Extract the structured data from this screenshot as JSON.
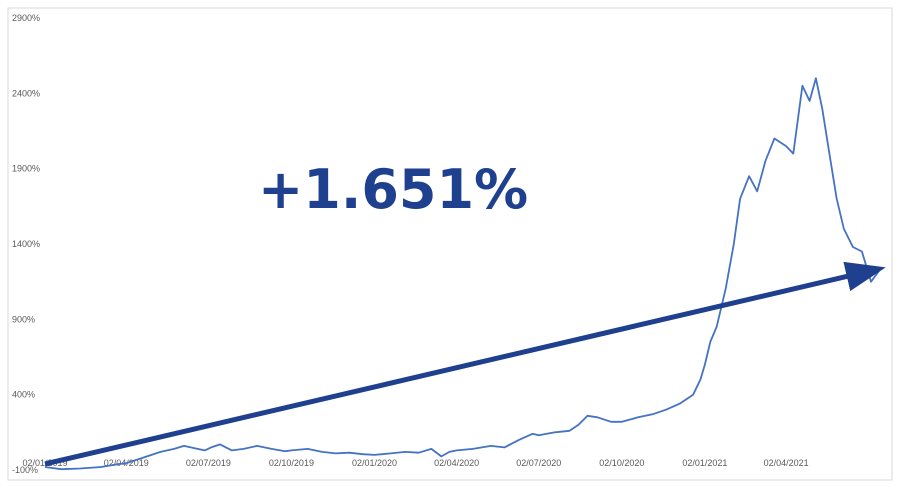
{
  "chart_data": {
    "type": "line",
    "title": "",
    "xlabel": "",
    "ylabel": "",
    "ylim": [
      -100,
      2900
    ],
    "y_ticks": [
      -100,
      400,
      900,
      1400,
      1900,
      2400,
      2900
    ],
    "y_tick_labels": [
      "-100%",
      "400%",
      "900%",
      "1400%",
      "1900%",
      "2400%",
      "2900%"
    ],
    "x_ticks": [
      "2019-01-02",
      "2019-04-02",
      "2019-07-02",
      "2019-10-02",
      "2020-01-02",
      "2020-04-02",
      "2020-07-02",
      "2020-10-02",
      "2021-01-02",
      "2021-04-02"
    ],
    "x_tick_labels": [
      "02/01/2019",
      "02/04/2019",
      "02/07/2019",
      "02/10/2019",
      "02/01/2020",
      "02/04/2020",
      "02/07/2020",
      "02/10/2020",
      "02/01/2021",
      "02/04/2021"
    ],
    "xlim": [
      "2019-01-02",
      "2021-07-15"
    ],
    "grid": false,
    "line_color": "#4472c4",
    "series": [
      {
        "x": [
          "2019-01-02",
          "2019-01-20",
          "2019-02-10",
          "2019-03-05",
          "2019-03-25",
          "2019-04-02",
          "2019-04-20",
          "2019-05-10",
          "2019-05-25",
          "2019-06-05",
          "2019-06-20",
          "2019-06-28",
          "2019-07-05",
          "2019-07-15",
          "2019-07-28",
          "2019-08-10",
          "2019-08-25",
          "2019-09-10",
          "2019-09-25",
          "2019-10-02",
          "2019-10-20",
          "2019-11-05",
          "2019-11-20",
          "2019-12-05",
          "2019-12-20",
          "2020-01-02",
          "2020-01-20",
          "2020-02-05",
          "2020-02-20",
          "2020-03-05",
          "2020-03-16",
          "2020-03-25",
          "2020-04-02",
          "2020-04-20",
          "2020-05-10",
          "2020-05-25",
          "2020-06-10",
          "2020-06-25",
          "2020-07-02",
          "2020-07-20",
          "2020-08-05",
          "2020-08-15",
          "2020-08-25",
          "2020-09-05",
          "2020-09-20",
          "2020-10-02",
          "2020-10-20",
          "2020-11-05",
          "2020-11-20",
          "2020-12-05",
          "2020-12-20",
          "2020-12-28",
          "2021-01-02",
          "2021-01-08",
          "2021-01-15",
          "2021-01-25",
          "2021-02-03",
          "2021-02-10",
          "2021-02-20",
          "2021-03-01",
          "2021-03-10",
          "2021-03-20",
          "2021-04-02",
          "2021-04-10",
          "2021-04-20",
          "2021-04-28",
          "2021-05-05",
          "2021-05-12",
          "2021-05-20",
          "2021-05-28",
          "2021-06-05",
          "2021-06-15",
          "2021-06-25",
          "2021-07-05",
          "2021-07-15"
        ],
        "y": [
          -80,
          -95,
          -90,
          -80,
          -60,
          -55,
          -20,
          20,
          40,
          60,
          40,
          30,
          50,
          70,
          30,
          40,
          60,
          40,
          25,
          30,
          40,
          20,
          10,
          15,
          5,
          0,
          10,
          20,
          15,
          40,
          -10,
          20,
          30,
          40,
          60,
          50,
          100,
          140,
          130,
          150,
          160,
          200,
          260,
          250,
          220,
          220,
          250,
          270,
          300,
          340,
          400,
          500,
          600,
          750,
          850,
          1100,
          1400,
          1700,
          1850,
          1750,
          1950,
          2100,
          2050,
          2000,
          2450,
          2350,
          2500,
          2300,
          2000,
          1700,
          1500,
          1380,
          1350,
          1150,
          1230
        ]
      }
    ],
    "annotation": "+1.651%",
    "arrow": {
      "from": {
        "x": "2019-01-02",
        "y": -60
      },
      "to": {
        "x": "2021-07-15",
        "y": 1230
      }
    }
  }
}
